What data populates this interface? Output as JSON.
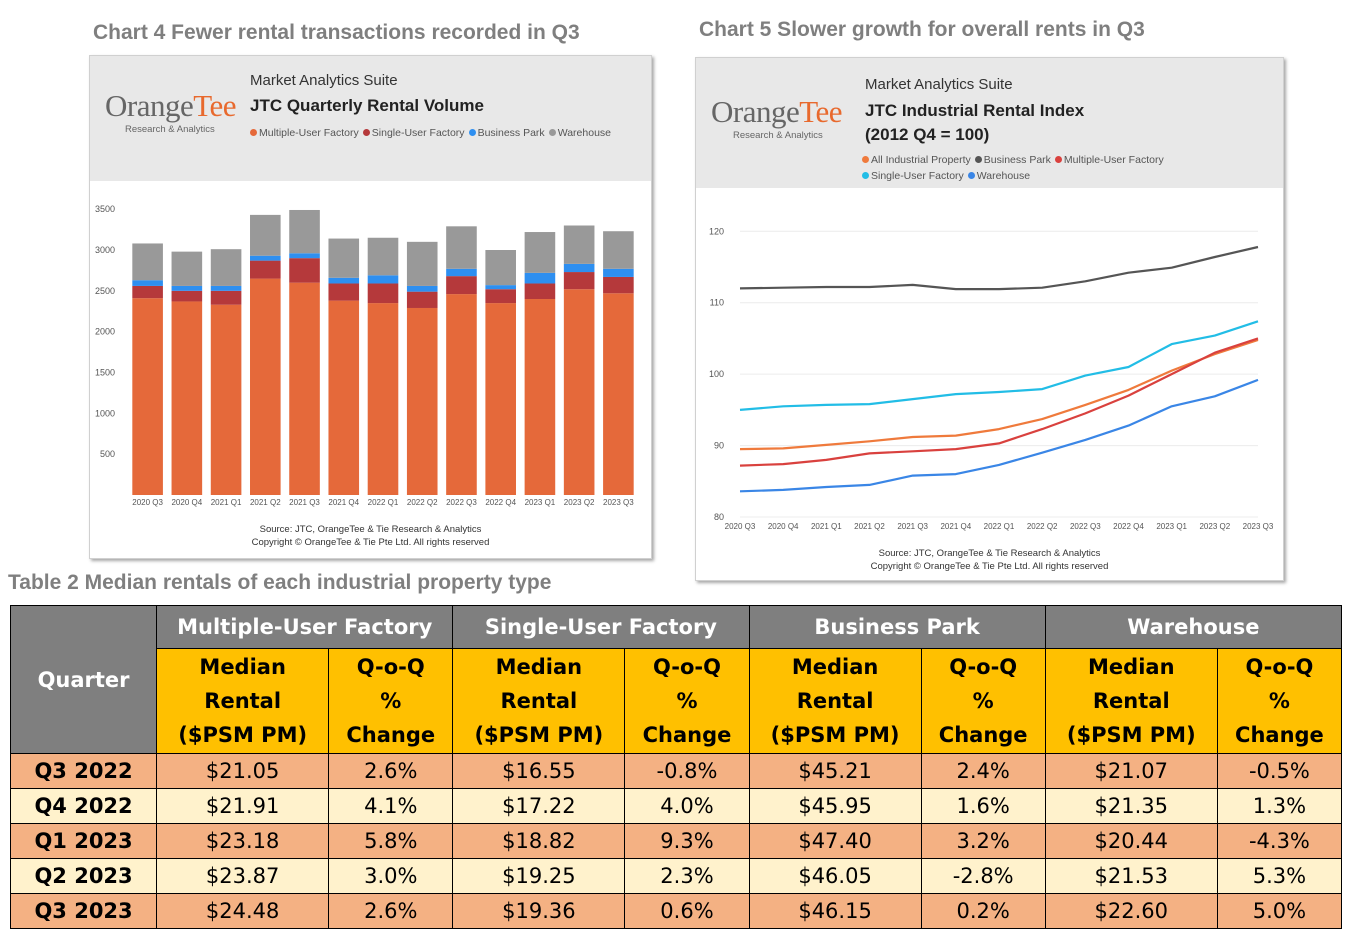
{
  "chart4": {
    "heading": "Chart 4 Fewer rental transactions recorded in Q3",
    "logo_name_part1": "Orange",
    "logo_name_part2": "Tee",
    "logo_tagline": "Research & Analytics",
    "suite": "Market Analytics Suite",
    "title": "JTC Quarterly Rental Volume",
    "source_line1": "Source: JTC, OrangeTee & Tie Research & Analytics",
    "source_line2": "Copyright © OrangeTee & Tie Pte Ltd. All rights reserved"
  },
  "chart5": {
    "heading": "Chart 5 Slower growth for overall rents in Q3",
    "logo_name_part1": "Orange",
    "logo_name_part2": "Tee",
    "logo_tagline": "Research & Analytics",
    "suite": "Market Analytics Suite",
    "title_line1": "JTC Industrial Rental Index",
    "title_line2": "(2012 Q4 = 100)",
    "source_line1": "Source: JTC, OrangeTee & Tie Research & Analytics",
    "source_line2": "Copyright © OrangeTee & Tie Pte Ltd. All rights reserved"
  },
  "chart_data": [
    {
      "type": "bar",
      "stacked": true,
      "title": "JTC Quarterly Rental Volume",
      "categories": [
        "2020 Q3",
        "2020 Q4",
        "2021 Q1",
        "2021 Q2",
        "2021 Q3",
        "2021 Q4",
        "2022 Q1",
        "2022 Q2",
        "2022 Q3",
        "2022 Q4",
        "2023 Q1",
        "2023 Q2",
        "2023 Q3"
      ],
      "ylim": [
        0,
        3600
      ],
      "yticks": [
        500,
        1000,
        1500,
        2000,
        2500,
        3000,
        3500
      ],
      "grid": false,
      "legend_position": "top",
      "series": [
        {
          "name": "Multiple-User Factory",
          "color": "#e5693a",
          "values": [
            2410,
            2370,
            2330,
            2650,
            2600,
            2380,
            2350,
            2290,
            2460,
            2350,
            2400,
            2520,
            2470
          ]
        },
        {
          "name": "Single-User Factory",
          "color": "#b5393b",
          "values": [
            150,
            130,
            170,
            220,
            300,
            210,
            240,
            200,
            220,
            170,
            190,
            210,
            200
          ]
        },
        {
          "name": "Business Park",
          "color": "#2e8ff0",
          "values": [
            70,
            60,
            60,
            60,
            60,
            70,
            100,
            70,
            90,
            50,
            130,
            100,
            100
          ]
        },
        {
          "name": "Warehouse",
          "color": "#999999",
          "values": [
            450,
            420,
            450,
            500,
            530,
            480,
            460,
            540,
            520,
            430,
            500,
            470,
            460
          ]
        }
      ]
    },
    {
      "type": "line",
      "title": "JTC Industrial Rental Index",
      "subtitle": "(2012 Q4 = 100)",
      "x": [
        "2020 Q3",
        "2020 Q4",
        "2021 Q1",
        "2021 Q2",
        "2021 Q3",
        "2021 Q4",
        "2022 Q1",
        "2022 Q2",
        "2022 Q3",
        "2022 Q4",
        "2023 Q1",
        "2023 Q2",
        "2023 Q3"
      ],
      "ylim": [
        80,
        122
      ],
      "yticks": [
        80,
        90,
        100,
        110,
        120
      ],
      "grid": true,
      "legend_position": "top",
      "series": [
        {
          "name": "All Industrial Property",
          "color": "#ef7a3c",
          "values": [
            89.5,
            89.6,
            90.1,
            90.6,
            91.2,
            91.4,
            92.3,
            93.7,
            95.7,
            97.8,
            100.5,
            102.8,
            104.8
          ]
        },
        {
          "name": "Business Park",
          "color": "#555555",
          "values": [
            112.0,
            112.1,
            112.2,
            112.2,
            112.5,
            111.9,
            111.9,
            112.1,
            113.0,
            114.2,
            114.9,
            116.4,
            117.8
          ]
        },
        {
          "name": "Multiple-User Factory",
          "color": "#d9413e",
          "values": [
            87.2,
            87.4,
            88.0,
            88.9,
            89.2,
            89.5,
            90.3,
            92.3,
            94.5,
            97.0,
            100.0,
            103.0,
            105.0
          ]
        },
        {
          "name": "Single-User Factory",
          "color": "#22bde6",
          "values": [
            95.0,
            95.5,
            95.7,
            95.8,
            96.5,
            97.2,
            97.5,
            97.9,
            99.8,
            101.0,
            104.2,
            105.4,
            107.4
          ]
        },
        {
          "name": "Warehouse",
          "color": "#3a86e6",
          "values": [
            83.6,
            83.8,
            84.2,
            84.5,
            85.8,
            86.0,
            87.3,
            89.0,
            90.8,
            92.8,
            95.5,
            96.9,
            99.2
          ]
        }
      ]
    },
    {
      "type": "table",
      "title": "Table 2 Median rentals of each industrial property type",
      "corner_label": "Quarter",
      "groups": [
        "Multiple-User Factory",
        "Single-User Factory",
        "Business Park",
        "Warehouse"
      ],
      "sub_columns": [
        [
          "Median",
          "Rental",
          "($PSM PM)"
        ],
        [
          "Q-o-Q",
          "%",
          "Change"
        ]
      ],
      "rows": [
        {
          "quarter": "Q3 2022",
          "cells": [
            "$21.05",
            "2.6%",
            "$16.55",
            "-0.8%",
            "$45.21",
            "2.4%",
            "$21.07",
            "-0.5%"
          ]
        },
        {
          "quarter": "Q4 2022",
          "cells": [
            "$21.91",
            "4.1%",
            "$17.22",
            "4.0%",
            "$45.95",
            "1.6%",
            "$21.35",
            "1.3%"
          ]
        },
        {
          "quarter": "Q1 2023",
          "cells": [
            "$23.18",
            "5.8%",
            "$18.82",
            "9.3%",
            "$47.40",
            "3.2%",
            "$20.44",
            "-4.3%"
          ]
        },
        {
          "quarter": "Q2 2023",
          "cells": [
            "$23.87",
            "3.0%",
            "$19.25",
            "2.3%",
            "$46.05",
            "-2.8%",
            "$21.53",
            "5.3%"
          ]
        },
        {
          "quarter": "Q3 2023",
          "cells": [
            "$24.48",
            "2.6%",
            "$19.36",
            "0.6%",
            "$46.15",
            "0.2%",
            "$22.60",
            "5.0%"
          ]
        }
      ]
    }
  ]
}
